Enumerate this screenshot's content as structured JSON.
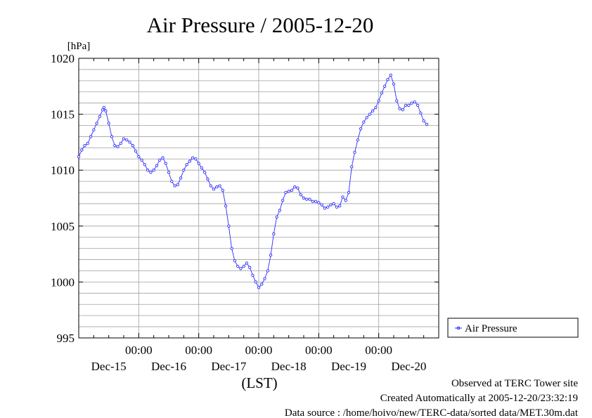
{
  "chart_data": {
    "type": "line",
    "title": "Air Pressure / 2005-12-20",
    "ylabel": "[hPa]",
    "xlabel": "(LST)",
    "ylim": [
      995,
      1020
    ],
    "yticks": [
      "995",
      "1000",
      "1005",
      "1010",
      "1015",
      "1020"
    ],
    "xticks": [
      {
        "time": "00:00",
        "date": "Dec-16",
        "day": 1
      },
      {
        "time": "00:00",
        "date": "Dec-17",
        "day": 2
      },
      {
        "time": "00:00",
        "date": "Dec-18",
        "day": 3
      },
      {
        "time": "00:00",
        "date": "Dec-19",
        "day": 4
      },
      {
        "time": "00:00",
        "date": "Dec-20",
        "day": 5
      }
    ],
    "xlim_days": [
      0,
      6
    ],
    "date_labels": [
      "Dec-15",
      "Dec-16",
      "Dec-17",
      "Dec-18",
      "Dec-19",
      "Dec-20"
    ],
    "grid": true,
    "legend_position": "right",
    "series": [
      {
        "name": "Air Pressure",
        "color": "#2b2bff",
        "points": [
          [
            0.0,
            1011.2
          ],
          [
            0.05,
            1011.8
          ],
          [
            0.1,
            1012.2
          ],
          [
            0.15,
            1012.4
          ],
          [
            0.2,
            1013.0
          ],
          [
            0.25,
            1013.6
          ],
          [
            0.3,
            1014.2
          ],
          [
            0.35,
            1014.8
          ],
          [
            0.4,
            1015.4
          ],
          [
            0.42,
            1015.6
          ],
          [
            0.45,
            1015.3
          ],
          [
            0.5,
            1014.2
          ],
          [
            0.55,
            1013.0
          ],
          [
            0.6,
            1012.2
          ],
          [
            0.65,
            1012.1
          ],
          [
            0.7,
            1012.4
          ],
          [
            0.75,
            1012.8
          ],
          [
            0.8,
            1012.7
          ],
          [
            0.85,
            1012.5
          ],
          [
            0.9,
            1012.2
          ],
          [
            0.95,
            1011.7
          ],
          [
            1.0,
            1011.2
          ],
          [
            1.05,
            1010.9
          ],
          [
            1.1,
            1010.5
          ],
          [
            1.15,
            1010.0
          ],
          [
            1.2,
            1009.8
          ],
          [
            1.25,
            1010.0
          ],
          [
            1.3,
            1010.4
          ],
          [
            1.35,
            1010.9
          ],
          [
            1.4,
            1011.1
          ],
          [
            1.45,
            1010.6
          ],
          [
            1.5,
            1009.8
          ],
          [
            1.55,
            1009.0
          ],
          [
            1.6,
            1008.6
          ],
          [
            1.65,
            1008.7
          ],
          [
            1.7,
            1009.3
          ],
          [
            1.75,
            1010.0
          ],
          [
            1.8,
            1010.5
          ],
          [
            1.85,
            1010.8
          ],
          [
            1.9,
            1011.1
          ],
          [
            1.95,
            1011.0
          ],
          [
            2.0,
            1010.6
          ],
          [
            2.05,
            1010.2
          ],
          [
            2.1,
            1009.8
          ],
          [
            2.15,
            1009.2
          ],
          [
            2.2,
            1008.6
          ],
          [
            2.25,
            1008.3
          ],
          [
            2.3,
            1008.5
          ],
          [
            2.35,
            1008.6
          ],
          [
            2.4,
            1008.2
          ],
          [
            2.45,
            1006.8
          ],
          [
            2.5,
            1005.0
          ],
          [
            2.55,
            1003.0
          ],
          [
            2.6,
            1001.9
          ],
          [
            2.65,
            1001.4
          ],
          [
            2.7,
            1001.2
          ],
          [
            2.75,
            1001.4
          ],
          [
            2.8,
            1001.7
          ],
          [
            2.85,
            1001.3
          ],
          [
            2.9,
            1000.6
          ],
          [
            2.95,
            1000.0
          ],
          [
            3.0,
            999.5
          ],
          [
            3.05,
            999.8
          ],
          [
            3.1,
            1000.3
          ],
          [
            3.15,
            1001.0
          ],
          [
            3.2,
            1002.4
          ],
          [
            3.25,
            1004.3
          ],
          [
            3.3,
            1005.8
          ],
          [
            3.35,
            1006.4
          ],
          [
            3.4,
            1007.3
          ],
          [
            3.45,
            1008.0
          ],
          [
            3.5,
            1008.1
          ],
          [
            3.55,
            1008.2
          ],
          [
            3.6,
            1008.5
          ],
          [
            3.65,
            1008.4
          ],
          [
            3.7,
            1007.8
          ],
          [
            3.75,
            1007.5
          ],
          [
            3.8,
            1007.4
          ],
          [
            3.85,
            1007.4
          ],
          [
            3.9,
            1007.2
          ],
          [
            3.95,
            1007.2
          ],
          [
            4.0,
            1007.1
          ],
          [
            4.05,
            1006.9
          ],
          [
            4.1,
            1006.6
          ],
          [
            4.15,
            1006.7
          ],
          [
            4.2,
            1006.9
          ],
          [
            4.25,
            1007.0
          ],
          [
            4.3,
            1006.7
          ],
          [
            4.35,
            1006.8
          ],
          [
            4.4,
            1007.6
          ],
          [
            4.45,
            1007.3
          ],
          [
            4.5,
            1008.0
          ],
          [
            4.55,
            1010.3
          ],
          [
            4.6,
            1011.6
          ],
          [
            4.65,
            1012.7
          ],
          [
            4.7,
            1013.7
          ],
          [
            4.75,
            1014.3
          ],
          [
            4.8,
            1014.7
          ],
          [
            4.85,
            1015.0
          ],
          [
            4.9,
            1015.3
          ],
          [
            4.95,
            1015.6
          ],
          [
            5.0,
            1016.2
          ],
          [
            5.05,
            1016.9
          ],
          [
            5.1,
            1017.5
          ],
          [
            5.15,
            1018.1
          ],
          [
            5.2,
            1018.5
          ],
          [
            5.25,
            1017.7
          ],
          [
            5.3,
            1016.2
          ],
          [
            5.35,
            1015.5
          ],
          [
            5.4,
            1015.4
          ],
          [
            5.45,
            1015.8
          ],
          [
            5.5,
            1015.8
          ],
          [
            5.55,
            1016.0
          ],
          [
            5.6,
            1016.1
          ],
          [
            5.65,
            1015.8
          ],
          [
            5.7,
            1015.1
          ],
          [
            5.75,
            1014.4
          ],
          [
            5.8,
            1014.1
          ]
        ]
      }
    ]
  },
  "footer": {
    "line1": "Observed at TERC Tower site",
    "line2": "Created Automatically at 2005-12-20/23:32:19",
    "line3": "Data source : /home/hoivo/new/TERC-data/sorted  data/MET.30m.dat"
  }
}
